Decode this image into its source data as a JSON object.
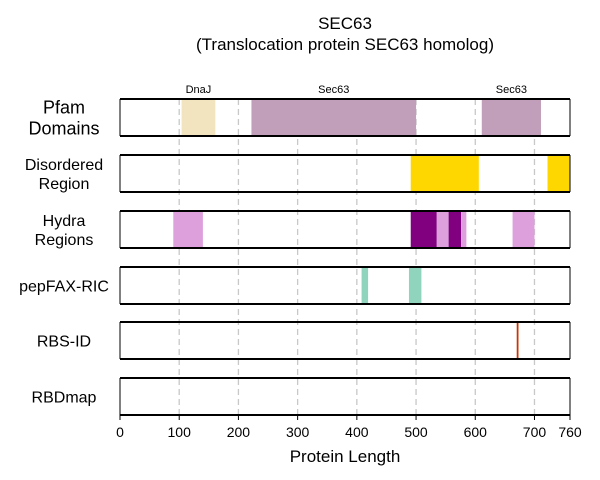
{
  "chart_data": {
    "type": "track",
    "title": "SEC63",
    "subtitle": "(Translocation protein SEC63 homolog)",
    "xlabel": "Protein Length",
    "xlim": [
      0,
      760
    ],
    "xticks": [
      0,
      100,
      200,
      300,
      400,
      500,
      600,
      700,
      760
    ],
    "grid_x": [
      100,
      200,
      300,
      400,
      500,
      600,
      700
    ],
    "tracks": [
      {
        "label_lines": [
          "Pfam",
          "Domains"
        ],
        "label_size": "large",
        "features": [
          {
            "start": 104,
            "end": 161,
            "color": "#f1e4bf",
            "label": "DnaJ"
          },
          {
            "start": 222,
            "end": 500,
            "color": "#c19fba",
            "label": "Sec63"
          },
          {
            "start": 611,
            "end": 711,
            "color": "#c19fba",
            "label": "Sec63"
          }
        ]
      },
      {
        "label_lines": [
          "Disordered",
          "Region"
        ],
        "features": [
          {
            "start": 491,
            "end": 606,
            "color": "#ffd700"
          },
          {
            "start": 722,
            "end": 760,
            "color": "#ffd700"
          }
        ]
      },
      {
        "label_lines": [
          "Hydra",
          "Regions"
        ],
        "features": [
          {
            "start": 90,
            "end": 140,
            "color": "#dda0dd"
          },
          {
            "start": 491,
            "end": 535,
            "color": "#800080"
          },
          {
            "start": 535,
            "end": 555,
            "color": "#dda0dd"
          },
          {
            "start": 555,
            "end": 576,
            "color": "#800080"
          },
          {
            "start": 576,
            "end": 585,
            "color": "#dda0dd"
          },
          {
            "start": 663,
            "end": 700,
            "color": "#dda0dd"
          }
        ]
      },
      {
        "label_lines": [
          "pepFAX-RIC"
        ],
        "features": [
          {
            "start": 408,
            "end": 419,
            "color": "#90d4bd"
          },
          {
            "start": 488,
            "end": 509,
            "color": "#90d4bd"
          }
        ]
      },
      {
        "label_lines": [
          "RBS-ID"
        ],
        "features": [
          {
            "start": 670,
            "end": 673,
            "color": "#cc3300"
          }
        ]
      },
      {
        "label_lines": [
          "RBDmap"
        ],
        "features": []
      }
    ]
  }
}
